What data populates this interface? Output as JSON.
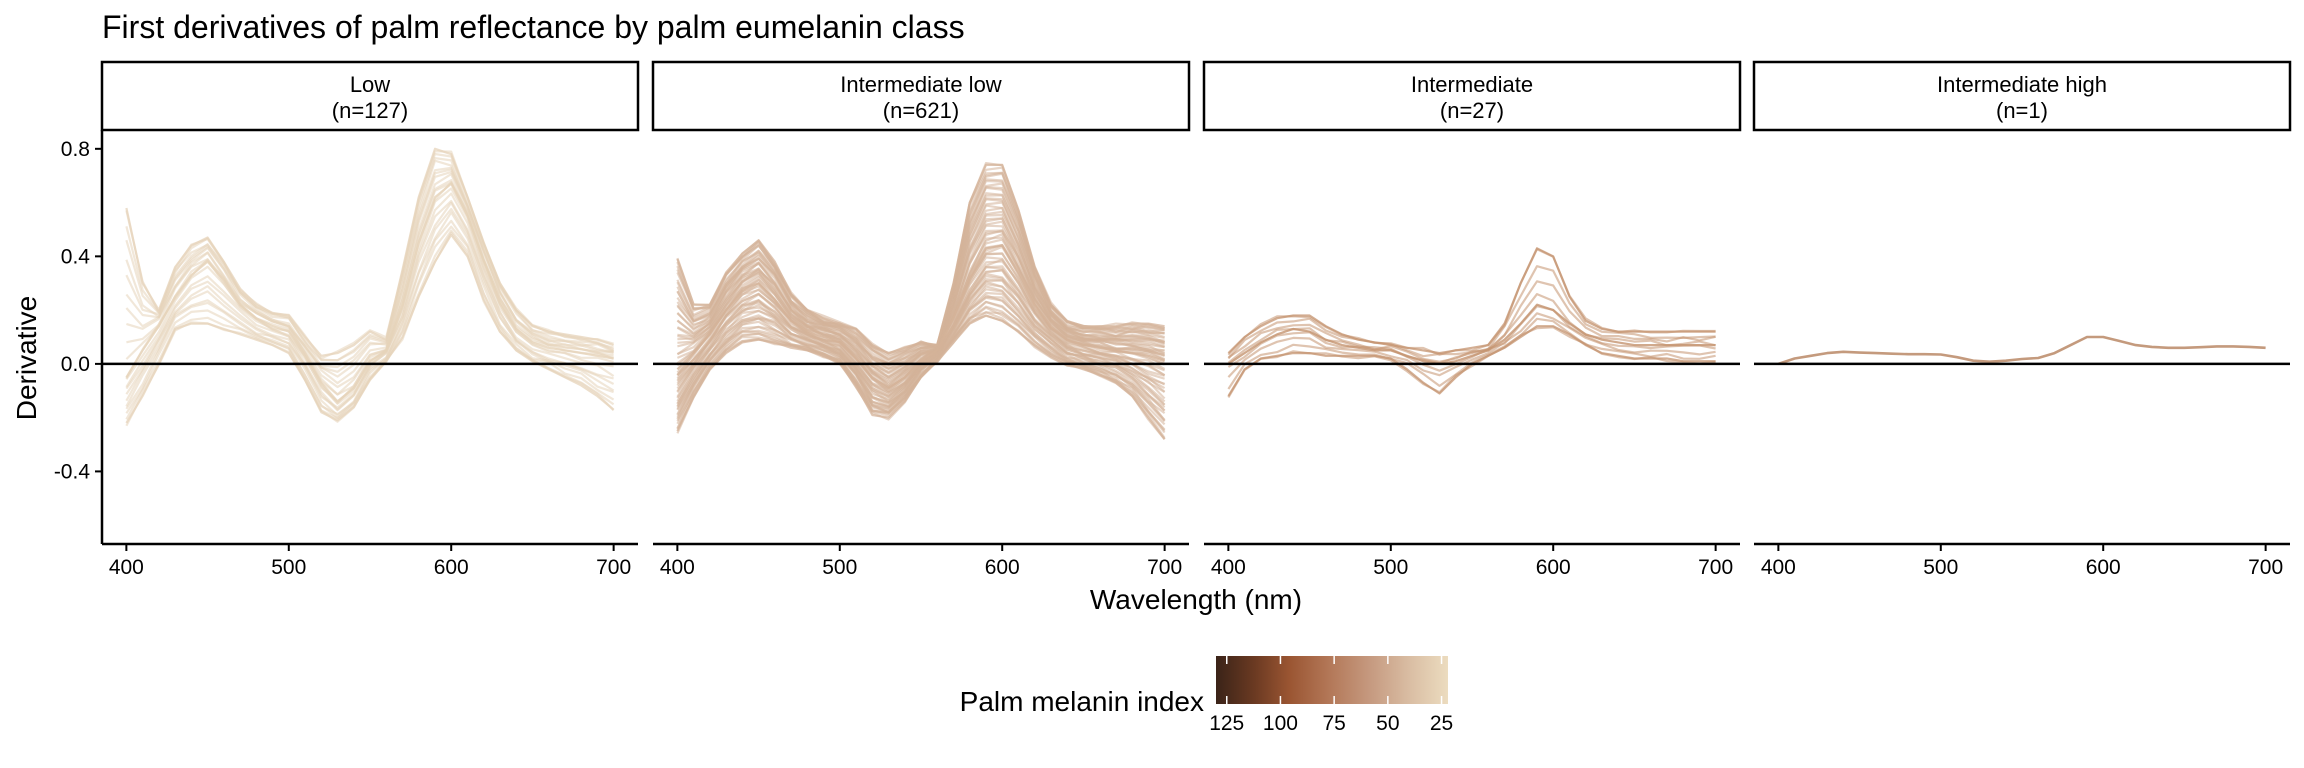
{
  "chart_data": {
    "type": "line",
    "title": "First derivatives of palm reflectance by palm eumelanin class",
    "xlabel": "Wavelength (nm)",
    "ylabel": "Derivative",
    "xlim": [
      385,
      715
    ],
    "ylim": [
      -0.67,
      0.87
    ],
    "x_ticks": [
      400,
      500,
      600,
      700
    ],
    "y_ticks": [
      0.8,
      0.4,
      0.0,
      -0.4
    ],
    "y_tick_labels": [
      "0.8",
      "0.4",
      "0.0",
      "-0.4"
    ],
    "reference_line_y": 0,
    "x": [
      400,
      410,
      420,
      430,
      440,
      450,
      460,
      470,
      480,
      490,
      500,
      510,
      520,
      530,
      540,
      550,
      560,
      570,
      580,
      590,
      600,
      610,
      620,
      630,
      640,
      650,
      660,
      670,
      680,
      690,
      700
    ],
    "panels": [
      {
        "strip_line1": "Low",
        "strip_line2": "(n=127)",
        "n": 127,
        "color": "#e6d3b9",
        "series_mean": [
          -0.05,
          0.05,
          0.14,
          0.25,
          0.33,
          0.38,
          0.31,
          0.22,
          0.17,
          0.14,
          0.12,
          0.03,
          -0.07,
          -0.14,
          -0.09,
          0.01,
          0.05,
          0.22,
          0.45,
          0.62,
          0.67,
          0.55,
          0.38,
          0.23,
          0.13,
          0.08,
          0.06,
          0.05,
          0.04,
          0.03,
          0.02
        ],
        "series_high": [
          0.58,
          0.3,
          0.2,
          0.36,
          0.44,
          0.47,
          0.38,
          0.28,
          0.22,
          0.19,
          0.18,
          0.1,
          0.03,
          0.04,
          0.07,
          0.12,
          0.09,
          0.35,
          0.62,
          0.8,
          0.78,
          0.62,
          0.45,
          0.3,
          0.2,
          0.14,
          0.12,
          0.11,
          0.1,
          0.09,
          0.07
        ],
        "series_low": [
          -0.22,
          -0.12,
          0.0,
          0.13,
          0.15,
          0.15,
          0.13,
          0.11,
          0.09,
          0.07,
          0.04,
          -0.06,
          -0.18,
          -0.21,
          -0.16,
          -0.06,
          0.01,
          0.1,
          0.25,
          0.38,
          0.48,
          0.4,
          0.24,
          0.12,
          0.05,
          0.01,
          -0.02,
          -0.05,
          -0.08,
          -0.12,
          -0.17
        ]
      },
      {
        "strip_line1": "Intermediate low",
        "strip_line2": "(n=621)",
        "n": 621,
        "color": "#d4b399",
        "series_mean": [
          -0.02,
          0.04,
          0.11,
          0.2,
          0.27,
          0.3,
          0.24,
          0.16,
          0.12,
          0.1,
          0.08,
          0.02,
          -0.05,
          -0.09,
          -0.05,
          0.01,
          0.05,
          0.17,
          0.32,
          0.43,
          0.44,
          0.34,
          0.22,
          0.14,
          0.09,
          0.07,
          0.06,
          0.05,
          0.04,
          0.03,
          0.01
        ],
        "series_high": [
          0.39,
          0.22,
          0.22,
          0.34,
          0.41,
          0.46,
          0.38,
          0.26,
          0.2,
          0.17,
          0.15,
          0.13,
          0.07,
          0.04,
          0.06,
          0.08,
          0.07,
          0.3,
          0.6,
          0.74,
          0.74,
          0.57,
          0.36,
          0.22,
          0.16,
          0.14,
          0.14,
          0.14,
          0.15,
          0.15,
          0.14
        ],
        "series_low": [
          -0.25,
          -0.12,
          -0.02,
          0.04,
          0.08,
          0.09,
          0.08,
          0.06,
          0.05,
          0.03,
          0.0,
          -0.08,
          -0.19,
          -0.2,
          -0.14,
          -0.05,
          0.01,
          0.08,
          0.15,
          0.18,
          0.16,
          0.12,
          0.07,
          0.03,
          0.0,
          -0.02,
          -0.04,
          -0.07,
          -0.12,
          -0.2,
          -0.28
        ]
      },
      {
        "strip_line1": "Intermediate",
        "strip_line2": "(n=27)",
        "n": 27,
        "color": "#c4936f",
        "series_mean": [
          0.0,
          0.04,
          0.08,
          0.11,
          0.13,
          0.12,
          0.09,
          0.07,
          0.06,
          0.05,
          0.05,
          0.03,
          0.01,
          0.0,
          0.01,
          0.03,
          0.05,
          0.09,
          0.15,
          0.22,
          0.2,
          0.15,
          0.11,
          0.09,
          0.08,
          0.07,
          0.07,
          0.07,
          0.07,
          0.07,
          0.07
        ],
        "series_high": [
          0.04,
          0.1,
          0.14,
          0.17,
          0.18,
          0.18,
          0.14,
          0.11,
          0.09,
          0.08,
          0.07,
          0.06,
          0.05,
          0.04,
          0.05,
          0.06,
          0.07,
          0.15,
          0.3,
          0.43,
          0.4,
          0.25,
          0.16,
          0.13,
          0.12,
          0.12,
          0.12,
          0.12,
          0.12,
          0.12,
          0.12
        ],
        "series_low": [
          -0.12,
          -0.02,
          0.02,
          0.03,
          0.04,
          0.04,
          0.03,
          0.03,
          0.03,
          0.03,
          0.02,
          -0.02,
          -0.07,
          -0.11,
          -0.05,
          0.0,
          0.03,
          0.06,
          0.1,
          0.14,
          0.14,
          0.11,
          0.07,
          0.04,
          0.03,
          0.02,
          0.02,
          0.02,
          0.01,
          0.01,
          0.01
        ]
      },
      {
        "strip_line1": "Intermediate high",
        "strip_line2": "(n=1)",
        "n": 1,
        "color": "#c49a7d",
        "series_mean": [
          0.0,
          0.02,
          0.03,
          0.04,
          0.045,
          0.042,
          0.04,
          0.038,
          0.036,
          0.036,
          0.035,
          0.025,
          0.012,
          0.008,
          0.012,
          0.018,
          0.022,
          0.04,
          0.07,
          0.1,
          0.1,
          0.085,
          0.07,
          0.063,
          0.06,
          0.06,
          0.062,
          0.065,
          0.065,
          0.063,
          0.06
        ]
      }
    ],
    "legend": {
      "title": "Palm melanin index",
      "position": "bottom",
      "scale_range": [
        22,
        130
      ],
      "ticks": [
        125,
        100,
        75,
        50,
        25
      ],
      "tick_labels": [
        "125",
        "100",
        "75",
        "50",
        "25"
      ],
      "color_stops": [
        {
          "value": 130,
          "color": "#3a2318"
        },
        {
          "value": 112,
          "color": "#6b3a22"
        },
        {
          "value": 96,
          "color": "#9a5532"
        },
        {
          "value": 78,
          "color": "#b27656"
        },
        {
          "value": 58,
          "color": "#c69a80"
        },
        {
          "value": 40,
          "color": "#d9bda3"
        },
        {
          "value": 22,
          "color": "#ecdcbf"
        }
      ]
    }
  }
}
